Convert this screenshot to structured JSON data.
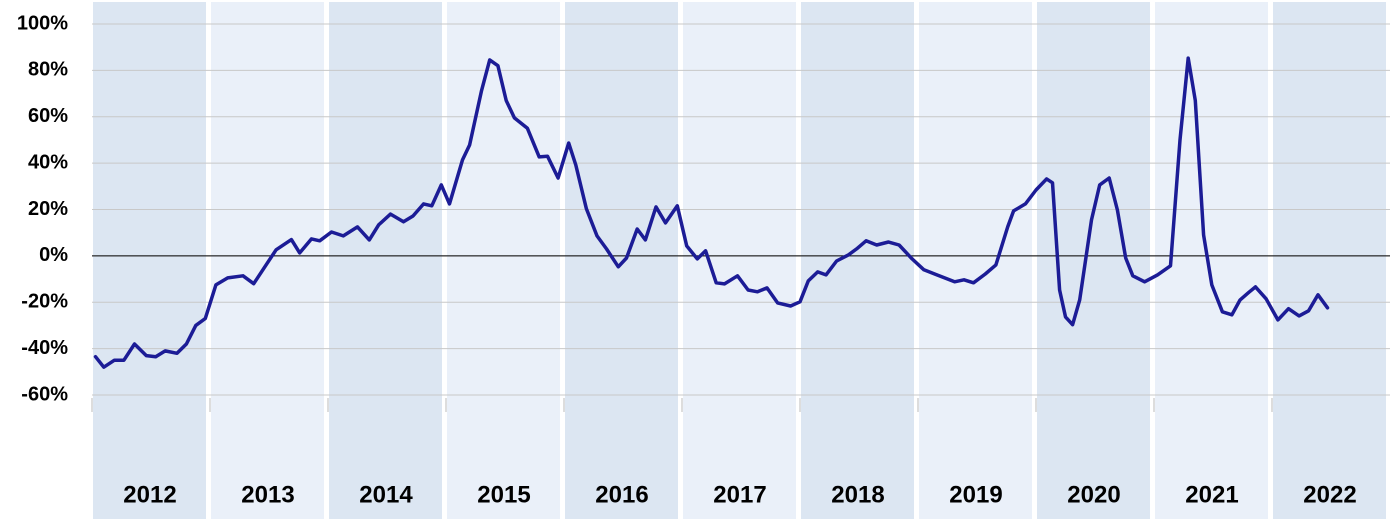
{
  "chart_data": {
    "type": "line",
    "categories": [
      "2012",
      "2013",
      "2014",
      "2015",
      "2016",
      "2017",
      "2018",
      "2019",
      "2020",
      "2021",
      "2022"
    ],
    "band_colors": [
      "#dce6f2",
      "#eaf0f9"
    ],
    "xlim": [
      2012,
      2023
    ],
    "ylim": [
      -60,
      100
    ],
    "yticks": [
      {
        "value": -60,
        "label": "-60%"
      },
      {
        "value": -40,
        "label": "-40%"
      },
      {
        "value": -20,
        "label": "-20%"
      },
      {
        "value": 0,
        "label": "0%"
      },
      {
        "value": 20,
        "label": "20%"
      },
      {
        "value": 40,
        "label": "40%"
      },
      {
        "value": 60,
        "label": "60%"
      },
      {
        "value": 80,
        "label": "80%"
      },
      {
        "value": 100,
        "label": "100%"
      }
    ],
    "grid": true,
    "x": [
      2012.03,
      2012.1,
      2012.19,
      2012.27,
      2012.36,
      2012.46,
      2012.54,
      2012.62,
      2012.72,
      2012.8,
      2012.88,
      2012.96,
      2013.05,
      2013.15,
      2013.28,
      2013.37,
      2013.47,
      2013.56,
      2013.69,
      2013.76,
      2013.86,
      2013.93,
      2014.03,
      2014.13,
      2014.25,
      2014.35,
      2014.43,
      2014.53,
      2014.64,
      2014.72,
      2014.81,
      2014.88,
      2014.96,
      2015.03,
      2015.14,
      2015.2,
      2015.3,
      2015.37,
      2015.44,
      2015.51,
      2015.58,
      2015.69,
      2015.79,
      2015.86,
      2015.95,
      2016.04,
      2016.1,
      2016.19,
      2016.28,
      2016.36,
      2016.46,
      2016.53,
      2016.62,
      2016.69,
      2016.78,
      2016.86,
      2016.96,
      2017.04,
      2017.13,
      2017.2,
      2017.29,
      2017.36,
      2017.47,
      2017.56,
      2017.64,
      2017.72,
      2017.81,
      2017.92,
      2018.0,
      2018.07,
      2018.15,
      2018.22,
      2018.31,
      2018.41,
      2018.48,
      2018.56,
      2018.65,
      2018.75,
      2018.84,
      2018.95,
      2019.05,
      2019.16,
      2019.31,
      2019.39,
      2019.47,
      2019.57,
      2019.66,
      2019.76,
      2019.81,
      2019.91,
      2020.0,
      2020.09,
      2020.14,
      2020.2,
      2020.25,
      2020.31,
      2020.37,
      2020.47,
      2020.54,
      2020.62,
      2020.69,
      2020.76,
      2020.82,
      2020.92,
      2021.03,
      2021.14,
      2021.22,
      2021.29,
      2021.35,
      2021.42,
      2021.49,
      2021.58,
      2021.66,
      2021.73,
      2021.8,
      2021.86,
      2021.95,
      2022.05,
      2022.14,
      2022.23,
      2022.31,
      2022.39,
      2022.47
    ],
    "series": [
      {
        "color": "#1c1c96",
        "values": [
          -43.5,
          -48,
          -45,
          -45,
          -38,
          -43,
          -43.5,
          -41,
          -42,
          -38,
          -30,
          -27,
          -12.5,
          -9.5,
          -8.6,
          -12,
          -4.3,
          2.6,
          7,
          1.3,
          7.3,
          6.5,
          10.3,
          8.6,
          12.5,
          6.9,
          13.4,
          18,
          14.7,
          17.2,
          22.4,
          21.6,
          30.6,
          22.4,
          41.4,
          47.8,
          71,
          84.5,
          82,
          67,
          59.5,
          55,
          42.7,
          43,
          33.6,
          48.7,
          39.2,
          20.3,
          8.6,
          3,
          -4.7,
          -0.9,
          11.6,
          6.9,
          21.1,
          14.2,
          21.6,
          4.3,
          -1.3,
          2.2,
          -11.6,
          -12.1,
          -8.6,
          -14.7,
          -15.5,
          -13.8,
          -20.3,
          -21.6,
          -19.8,
          -10.8,
          -6.9,
          -8.2,
          -2.2,
          0.4,
          3,
          6.5,
          4.7,
          6,
          4.7,
          -1.3,
          -6,
          -8.2,
          -11.2,
          -10.3,
          -11.6,
          -7.8,
          -3.9,
          12.5,
          19.4,
          22.4,
          28.4,
          33.2,
          31.5,
          -14.7,
          -26.3,
          -29.7,
          -19,
          15.5,
          30.6,
          33.6,
          19.8,
          -0.9,
          -8.6,
          -11.2,
          -8.2,
          -4.3,
          50,
          85.3,
          67,
          9,
          -12.5,
          -24.1,
          -25.4,
          -19,
          -15.9,
          -13.4,
          -18.5,
          -27.6,
          -22.8,
          -25.9,
          -23.7,
          -16.8,
          -22.4
        ]
      }
    ]
  }
}
